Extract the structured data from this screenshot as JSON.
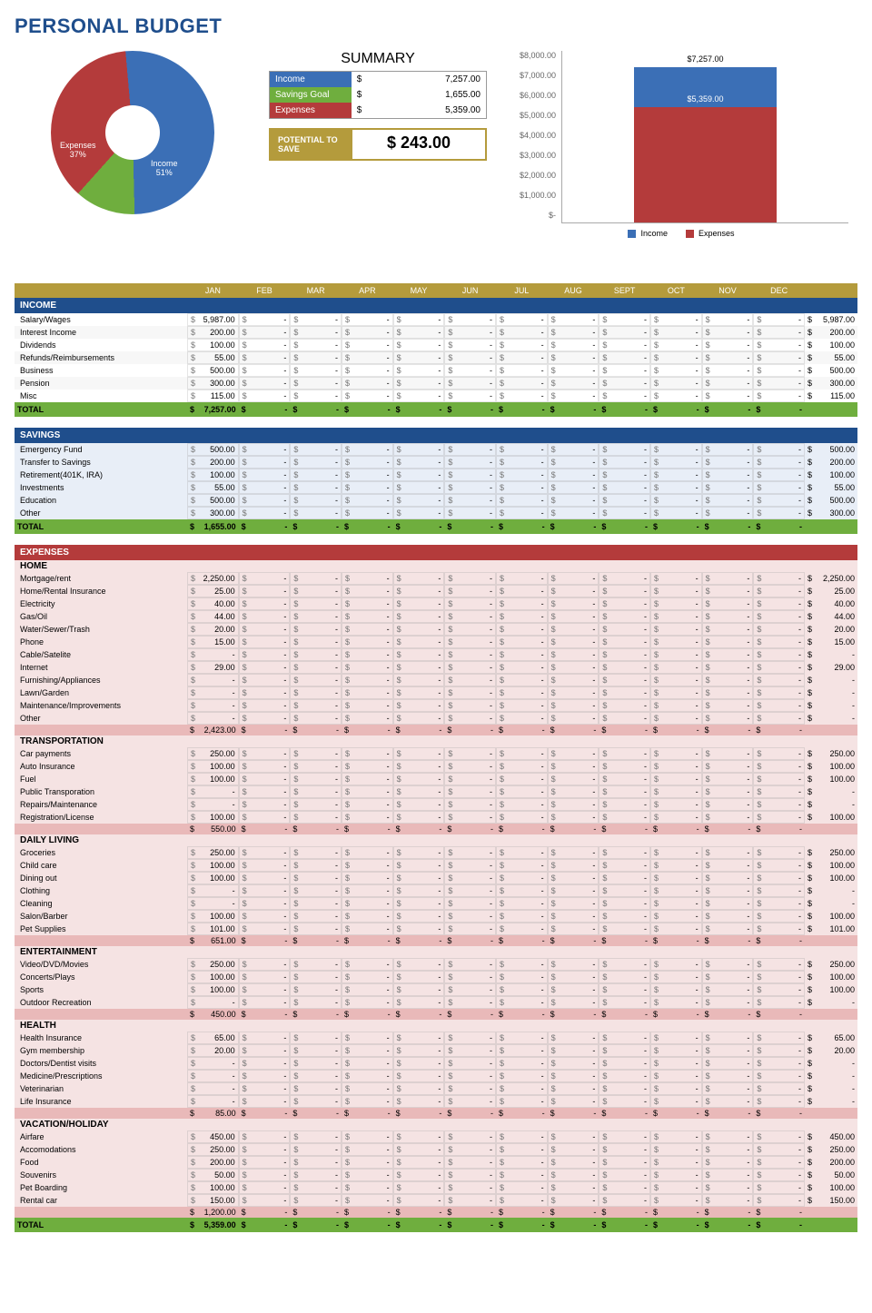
{
  "title": "PERSONAL BUDGET",
  "colors": {
    "income": "#3b6fb6",
    "savings": "#6fae3e",
    "expenses": "#b43b3b",
    "gold": "#b49b3c",
    "navy": "#1f4e8c"
  },
  "summary": {
    "title": "SUMMARY",
    "rows": [
      {
        "label": "Income",
        "color": "#3b6fb6",
        "currency": "$",
        "value": "7,257.00"
      },
      {
        "label": "Savings Goal",
        "color": "#6fae3e",
        "currency": "$",
        "value": "1,655.00"
      },
      {
        "label": "Expenses",
        "color": "#b43b3b",
        "currency": "$",
        "value": "5,359.00"
      }
    ],
    "potential": {
      "label": "POTENTIAL TO SAVE",
      "value": "$ 243.00"
    }
  },
  "pie": {
    "slices": [
      {
        "label": "Income",
        "pct": 51,
        "color": "#3b6fb6"
      },
      {
        "label": "Savings Goal",
        "pct": 12,
        "color": "#6fae3e"
      },
      {
        "label": "Expenses",
        "pct": 37,
        "color": "#b43b3b"
      }
    ]
  },
  "bar": {
    "ymax": 8000,
    "yticks": [
      "$8,000.00",
      "$7,000.00",
      "$6,000.00",
      "$5,000.00",
      "$4,000.00",
      "$3,000.00",
      "$2,000.00",
      "$1,000.00",
      "$-"
    ],
    "income": {
      "value": 7257,
      "label": "$7,257.00",
      "color": "#3b6fb6"
    },
    "expenses": {
      "value": 5359,
      "label": "$5,359.00",
      "color": "#b43b3b"
    },
    "legend": [
      {
        "label": "Income",
        "color": "#3b6fb6"
      },
      {
        "label": "Expenses",
        "color": "#b43b3b"
      }
    ]
  },
  "months": [
    "JAN",
    "FEB",
    "MAR",
    "APR",
    "MAY",
    "JUN",
    "JUL",
    "AUG",
    "SEPT",
    "OCT",
    "NOV",
    "DEC"
  ],
  "sections": [
    {
      "name": "INCOME",
      "hdClass": "hd-blue",
      "bodyClass": "sec-income",
      "rows": [
        {
          "name": "Salary/Wages",
          "jan": "5,987.00",
          "total": "5,987.00"
        },
        {
          "name": "Interest Income",
          "jan": "200.00",
          "total": "200.00"
        },
        {
          "name": "Dividends",
          "jan": "100.00",
          "total": "100.00"
        },
        {
          "name": "Refunds/Reimbursements",
          "jan": "55.00",
          "total": "55.00"
        },
        {
          "name": "Business",
          "jan": "500.00",
          "total": "500.00"
        },
        {
          "name": "Pension",
          "jan": "300.00",
          "total": "300.00"
        },
        {
          "name": "Misc",
          "jan": "115.00",
          "total": "115.00"
        }
      ],
      "total": {
        "label": "TOTAL",
        "jan": "7,257.00"
      }
    },
    {
      "name": "SAVINGS",
      "hdClass": "hd-blue",
      "bodyClass": "sec-savings",
      "rows": [
        {
          "name": "Emergency Fund",
          "jan": "500.00",
          "total": "500.00"
        },
        {
          "name": "Transfer to Savings",
          "jan": "200.00",
          "total": "200.00"
        },
        {
          "name": "Retirement(401K, IRA)",
          "jan": "100.00",
          "total": "100.00"
        },
        {
          "name": "Investments",
          "jan": "55.00",
          "total": "55.00"
        },
        {
          "name": "Education",
          "jan": "500.00",
          "total": "500.00"
        },
        {
          "name": "Other",
          "jan": "300.00",
          "total": "300.00"
        }
      ],
      "total": {
        "label": "TOTAL",
        "jan": "1,655.00"
      }
    },
    {
      "name": "EXPENSES",
      "hdClass": "hd-red",
      "bodyClass": "sec-expenses",
      "categories": [
        {
          "name": "HOME",
          "rows": [
            {
              "name": "Mortgage/rent",
              "jan": "2,250.00",
              "total": "2,250.00"
            },
            {
              "name": "Home/Rental Insurance",
              "jan": "25.00",
              "total": "25.00"
            },
            {
              "name": "Electricity",
              "jan": "40.00",
              "total": "40.00"
            },
            {
              "name": "Gas/Oil",
              "jan": "44.00",
              "total": "44.00"
            },
            {
              "name": "Water/Sewer/Trash",
              "jan": "20.00",
              "total": "20.00"
            },
            {
              "name": "Phone",
              "jan": "15.00",
              "total": "15.00"
            },
            {
              "name": "Cable/Satelite",
              "jan": "-",
              "total": "-"
            },
            {
              "name": "Internet",
              "jan": "29.00",
              "total": "29.00"
            },
            {
              "name": "Furnishing/Appliances",
              "jan": "-",
              "total": "-"
            },
            {
              "name": "Lawn/Garden",
              "jan": "-",
              "total": "-"
            },
            {
              "name": "Maintenance/Improvements",
              "jan": "-",
              "total": "-"
            },
            {
              "name": "Other",
              "jan": "-",
              "total": "-"
            }
          ],
          "subtotal": "2,423.00"
        },
        {
          "name": "TRANSPORTATION",
          "rows": [
            {
              "name": "Car payments",
              "jan": "250.00",
              "total": "250.00"
            },
            {
              "name": "Auto Insurance",
              "jan": "100.00",
              "total": "100.00"
            },
            {
              "name": "Fuel",
              "jan": "100.00",
              "total": "100.00"
            },
            {
              "name": "Public Transporation",
              "jan": "-",
              "total": "-"
            },
            {
              "name": "Repairs/Maintenance",
              "jan": "-",
              "total": "-"
            },
            {
              "name": "Registration/License",
              "jan": "100.00",
              "total": "100.00"
            }
          ],
          "subtotal": "550.00"
        },
        {
          "name": "DAILY LIVING",
          "rows": [
            {
              "name": "Groceries",
              "jan": "250.00",
              "total": "250.00"
            },
            {
              "name": "Child care",
              "jan": "100.00",
              "total": "100.00"
            },
            {
              "name": "Dining out",
              "jan": "100.00",
              "total": "100.00"
            },
            {
              "name": "Clothing",
              "jan": "-",
              "total": "-"
            },
            {
              "name": "Cleaning",
              "jan": "-",
              "total": "-"
            },
            {
              "name": "Salon/Barber",
              "jan": "100.00",
              "total": "100.00"
            },
            {
              "name": "Pet Supplies",
              "jan": "101.00",
              "total": "101.00"
            }
          ],
          "subtotal": "651.00"
        },
        {
          "name": "ENTERTAINMENT",
          "rows": [
            {
              "name": "Video/DVD/Movies",
              "jan": "250.00",
              "total": "250.00"
            },
            {
              "name": "Concerts/Plays",
              "jan": "100.00",
              "total": "100.00"
            },
            {
              "name": "Sports",
              "jan": "100.00",
              "total": "100.00"
            },
            {
              "name": "Outdoor Recreation",
              "jan": "-",
              "total": "-"
            }
          ],
          "subtotal": "450.00"
        },
        {
          "name": "HEALTH",
          "rows": [
            {
              "name": "Health Insurance",
              "jan": "65.00",
              "total": "65.00"
            },
            {
              "name": "Gym membership",
              "jan": "20.00",
              "total": "20.00"
            },
            {
              "name": "Doctors/Dentist visits",
              "jan": "-",
              "total": "-"
            },
            {
              "name": "Medicine/Prescriptions",
              "jan": "-",
              "total": "-"
            },
            {
              "name": "Veterinarian",
              "jan": "-",
              "total": "-"
            },
            {
              "name": "Life Insurance",
              "jan": "-",
              "total": "-"
            }
          ],
          "subtotal": "85.00"
        },
        {
          "name": "VACATION/HOLIDAY",
          "rows": [
            {
              "name": "Airfare",
              "jan": "450.00",
              "total": "450.00"
            },
            {
              "name": "Accomodations",
              "jan": "250.00",
              "total": "250.00"
            },
            {
              "name": "Food",
              "jan": "200.00",
              "total": "200.00"
            },
            {
              "name": "Souvenirs",
              "jan": "50.00",
              "total": "50.00"
            },
            {
              "name": "Pet Boarding",
              "jan": "100.00",
              "total": "100.00"
            },
            {
              "name": "Rental car",
              "jan": "150.00",
              "total": "150.00"
            }
          ],
          "subtotal": "1,200.00"
        }
      ],
      "total": {
        "label": "TOTAL",
        "jan": "5,359.00"
      }
    }
  ]
}
